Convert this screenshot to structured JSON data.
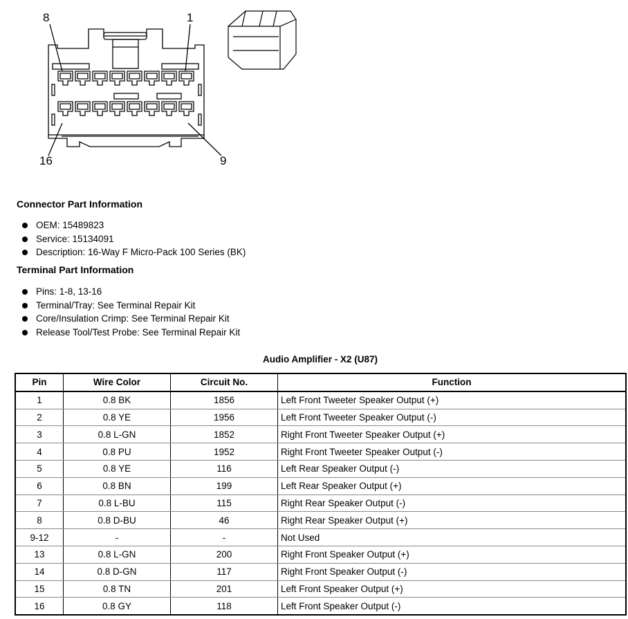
{
  "diagram": {
    "pin_labels": {
      "top_left": "8",
      "top_right": "1",
      "bottom_left": "16",
      "bottom_right": "9"
    },
    "icons": [
      "connector-face-drawing",
      "connector-isometric-drawing"
    ]
  },
  "connector_info": {
    "title": "Connector Part Information",
    "items": [
      "OEM: 15489823",
      "Service: 15134091",
      "Description: 16-Way F Micro-Pack 100 Series (BK)"
    ]
  },
  "terminal_info": {
    "title": "Terminal Part Information",
    "items": [
      "Pins: 1-8, 13-16",
      "Terminal/Tray: See Terminal Repair Kit",
      "Core/Insulation Crimp: See Terminal Repair Kit",
      "Release Tool/Test Probe: See Terminal Repair Kit"
    ]
  },
  "table": {
    "caption": "Audio Amplifier - X2 (U87)",
    "headers": [
      "Pin",
      "Wire Color",
      "Circuit No.",
      "Function"
    ],
    "rows": [
      [
        "1",
        "0.8 BK",
        "1856",
        "Left Front Tweeter Speaker Output (+)"
      ],
      [
        "2",
        "0.8 YE",
        "1956",
        "Left Front Tweeter Speaker Output (-)"
      ],
      [
        "3",
        "0.8 L-GN",
        "1852",
        "Right Front Tweeter Speaker Output (+)"
      ],
      [
        "4",
        "0.8 PU",
        "1952",
        "Right Front Tweeter Speaker Output (-)"
      ],
      [
        "5",
        "0.8 YE",
        "116",
        "Left Rear Speaker Output (-)"
      ],
      [
        "6",
        "0.8 BN",
        "199",
        "Left Rear Speaker Output (+)"
      ],
      [
        "7",
        "0.8 L-BU",
        "115",
        "Right Rear Speaker Output (-)"
      ],
      [
        "8",
        "0.8 D-BU",
        "46",
        "Right Rear Speaker Output (+)"
      ],
      [
        "9-12",
        "-",
        "-",
        "Not Used"
      ],
      [
        "13",
        "0.8 L-GN",
        "200",
        "Right Front Speaker Output (+)"
      ],
      [
        "14",
        "0.8 D-GN",
        "117",
        "Right Front Speaker Output (-)"
      ],
      [
        "15",
        "0.8 TN",
        "201",
        "Left Front Speaker Output (+)"
      ],
      [
        "16",
        "0.8 GY",
        "118",
        "Left Front Speaker Output (-)"
      ]
    ]
  }
}
